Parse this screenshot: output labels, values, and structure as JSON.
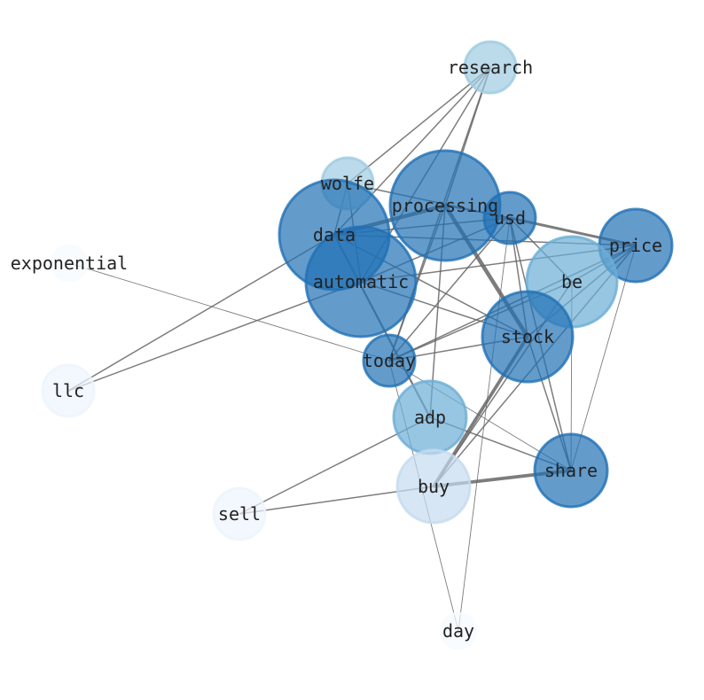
{
  "nodes": [
    {
      "id": "research",
      "color": "#9ecae1"
    },
    {
      "id": "wolfe",
      "color": "#9ecae1"
    },
    {
      "id": "processing",
      "color": "#2171b5"
    },
    {
      "id": "usd",
      "color": "#2171b5"
    },
    {
      "id": "data",
      "color": "#2171b5"
    },
    {
      "id": "automatic",
      "color": "#2171b5"
    },
    {
      "id": "price",
      "color": "#2171b5"
    },
    {
      "id": "be",
      "color": "#6baed6"
    },
    {
      "id": "exponential",
      "color": "#f7fbff"
    },
    {
      "id": "stock",
      "color": "#2171b5"
    },
    {
      "id": "today",
      "color": "#2171b5"
    },
    {
      "id": "llc",
      "color": "#eef4fd"
    },
    {
      "id": "adp",
      "color": "#6baed6"
    },
    {
      "id": "share",
      "color": "#2171b5"
    },
    {
      "id": "buy",
      "color": "#c6dbef"
    },
    {
      "id": "sell",
      "color": "#eef4fd"
    },
    {
      "id": "day",
      "color": "#f7fbff"
    }
  ],
  "edges": [
    [
      "research",
      "wolfe",
      1
    ],
    [
      "research",
      "processing",
      1
    ],
    [
      "research",
      "data",
      1
    ],
    [
      "research",
      "automatic",
      1
    ],
    [
      "research",
      "today",
      1
    ],
    [
      "wolfe",
      "usd",
      1
    ],
    [
      "wolfe",
      "data",
      1
    ],
    [
      "wolfe",
      "automatic",
      1
    ],
    [
      "data",
      "processing",
      3
    ],
    [
      "data",
      "usd",
      1
    ],
    [
      "data",
      "price",
      1
    ],
    [
      "data",
      "stock",
      1
    ],
    [
      "data",
      "adp",
      1.5
    ],
    [
      "data",
      "llc",
      1
    ],
    [
      "automatic",
      "price",
      1
    ],
    [
      "automatic",
      "llc",
      1
    ],
    [
      "automatic",
      "stock",
      1
    ],
    [
      "automatic",
      "usd",
      1
    ],
    [
      "processing",
      "stock",
      3
    ],
    [
      "processing",
      "usd",
      1
    ],
    [
      "processing",
      "today",
      1
    ],
    [
      "processing",
      "adp",
      1
    ],
    [
      "usd",
      "price",
      2
    ],
    [
      "usd",
      "stock",
      1
    ],
    [
      "usd",
      "share",
      1
    ],
    [
      "usd",
      "be",
      1
    ],
    [
      "usd",
      "today",
      1
    ],
    [
      "usd",
      "day",
      0.6
    ],
    [
      "price",
      "be",
      1
    ],
    [
      "price",
      "today",
      1
    ],
    [
      "price",
      "stock",
      1
    ],
    [
      "price",
      "share",
      0.6
    ],
    [
      "price",
      "buy",
      1
    ],
    [
      "be",
      "today",
      1
    ],
    [
      "be",
      "share",
      0.6
    ],
    [
      "be",
      "buy",
      1
    ],
    [
      "stock",
      "today",
      1
    ],
    [
      "stock",
      "buy",
      2.5
    ],
    [
      "stock",
      "share",
      1
    ],
    [
      "today",
      "share",
      0.6
    ],
    [
      "today",
      "day",
      0.6
    ],
    [
      "exponential",
      "today",
      0.6
    ],
    [
      "adp",
      "share",
      1
    ],
    [
      "adp",
      "sell",
      1
    ],
    [
      "buy",
      "share",
      2.5
    ],
    [
      "buy",
      "sell",
      1
    ]
  ]
}
